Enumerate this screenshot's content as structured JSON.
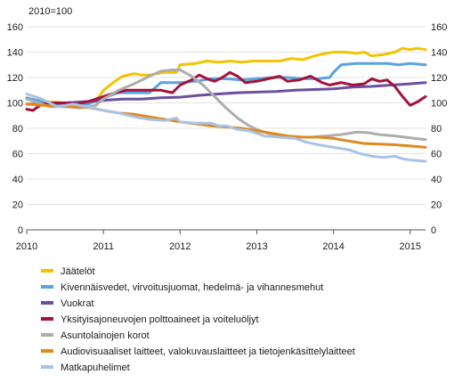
{
  "chart_data": {
    "type": "line",
    "title": "",
    "unit_label": "2010=100",
    "x_ticks": [
      "2010",
      "2011",
      "2012",
      "2013",
      "2014",
      "2015"
    ],
    "xlim": [
      2010.0,
      2015.2
    ],
    "ylim": [
      0,
      160
    ],
    "y_ticks": [
      "0",
      "20",
      "40",
      "60",
      "80",
      "100",
      "120",
      "140",
      "160"
    ],
    "grid": "horizontal",
    "legend_position": "bottom",
    "series": [
      {
        "name": "Jäätelöt",
        "color": "#f3c300",
        "points": [
          [
            2010.0,
            103
          ],
          [
            2010.25,
            101
          ],
          [
            2010.5,
            100
          ],
          [
            2010.75,
            99
          ],
          [
            2010.9,
            101
          ],
          [
            2011.0,
            110
          ],
          [
            2011.15,
            117
          ],
          [
            2011.25,
            121
          ],
          [
            2011.4,
            123
          ],
          [
            2011.5,
            122
          ],
          [
            2011.6,
            122
          ],
          [
            2011.8,
            124
          ],
          [
            2011.95,
            124
          ],
          [
            2012.0,
            130
          ],
          [
            2012.2,
            131
          ],
          [
            2012.35,
            133
          ],
          [
            2012.5,
            132
          ],
          [
            2012.65,
            133
          ],
          [
            2012.8,
            132
          ],
          [
            2012.95,
            133
          ],
          [
            2013.1,
            133
          ],
          [
            2013.3,
            133
          ],
          [
            2013.45,
            135
          ],
          [
            2013.6,
            134
          ],
          [
            2013.75,
            137
          ],
          [
            2013.9,
            139
          ],
          [
            2014.0,
            140
          ],
          [
            2014.15,
            140
          ],
          [
            2014.3,
            139
          ],
          [
            2014.4,
            140
          ],
          [
            2014.5,
            137
          ],
          [
            2014.65,
            138
          ],
          [
            2014.8,
            140
          ],
          [
            2014.9,
            143
          ],
          [
            2015.0,
            142
          ],
          [
            2015.1,
            143
          ],
          [
            2015.2,
            142
          ]
        ]
      },
      {
        "name": "Kivennäisvedet, virvoitusjuomat, hedelmä- ja vihannesmehut",
        "color": "#5ba3dc",
        "points": [
          [
            2010.0,
            104
          ],
          [
            2010.2,
            101
          ],
          [
            2010.4,
            99
          ],
          [
            2010.6,
            98
          ],
          [
            2010.8,
            99
          ],
          [
            2011.0,
            104
          ],
          [
            2011.2,
            108
          ],
          [
            2011.4,
            108
          ],
          [
            2011.6,
            108
          ],
          [
            2011.75,
            116
          ],
          [
            2012.0,
            116
          ],
          [
            2012.2,
            117
          ],
          [
            2012.4,
            119
          ],
          [
            2012.6,
            119
          ],
          [
            2012.8,
            118
          ],
          [
            2013.0,
            119
          ],
          [
            2013.2,
            120
          ],
          [
            2013.4,
            120
          ],
          [
            2013.6,
            119
          ],
          [
            2013.8,
            119
          ],
          [
            2013.95,
            120
          ],
          [
            2014.0,
            124
          ],
          [
            2014.1,
            130
          ],
          [
            2014.3,
            131
          ],
          [
            2014.5,
            131
          ],
          [
            2014.7,
            131
          ],
          [
            2014.85,
            130
          ],
          [
            2015.0,
            131
          ],
          [
            2015.2,
            130
          ]
        ]
      },
      {
        "name": "Vuokrat",
        "color": "#6b4fa0",
        "points": [
          [
            2010.0,
            99
          ],
          [
            2010.25,
            99
          ],
          [
            2010.5,
            100
          ],
          [
            2010.75,
            101
          ],
          [
            2011.0,
            102
          ],
          [
            2011.25,
            103
          ],
          [
            2011.5,
            103
          ],
          [
            2011.75,
            104
          ],
          [
            2012.0,
            104.5
          ],
          [
            2012.25,
            106
          ],
          [
            2012.5,
            107
          ],
          [
            2012.75,
            108
          ],
          [
            2013.0,
            108.5
          ],
          [
            2013.25,
            109
          ],
          [
            2013.5,
            110
          ],
          [
            2013.75,
            110.5
          ],
          [
            2014.0,
            111
          ],
          [
            2014.25,
            112.5
          ],
          [
            2014.5,
            113
          ],
          [
            2014.75,
            114
          ],
          [
            2015.0,
            115
          ],
          [
            2015.2,
            116
          ]
        ]
      },
      {
        "name": "Yksityisajoneuvojen polttoaineet ja voiteluöljyt",
        "color": "#a5113a",
        "points": [
          [
            2010.0,
            95
          ],
          [
            2010.08,
            94
          ],
          [
            2010.2,
            99
          ],
          [
            2010.35,
            100
          ],
          [
            2010.5,
            100
          ],
          [
            2010.65,
            99
          ],
          [
            2010.8,
            101
          ],
          [
            2011.0,
            105
          ],
          [
            2011.15,
            108
          ],
          [
            2011.3,
            110
          ],
          [
            2011.45,
            110
          ],
          [
            2011.6,
            110
          ],
          [
            2011.75,
            110
          ],
          [
            2011.9,
            108
          ],
          [
            2012.0,
            114
          ],
          [
            2012.15,
            118
          ],
          [
            2012.25,
            122
          ],
          [
            2012.35,
            119
          ],
          [
            2012.45,
            117
          ],
          [
            2012.55,
            120
          ],
          [
            2012.65,
            124
          ],
          [
            2012.75,
            121
          ],
          [
            2012.85,
            116
          ],
          [
            2013.0,
            117
          ],
          [
            2013.15,
            119
          ],
          [
            2013.3,
            121
          ],
          [
            2013.4,
            117
          ],
          [
            2013.55,
            118
          ],
          [
            2013.7,
            121
          ],
          [
            2013.85,
            116
          ],
          [
            2013.95,
            114
          ],
          [
            2014.1,
            116
          ],
          [
            2014.25,
            114
          ],
          [
            2014.4,
            115
          ],
          [
            2014.5,
            119
          ],
          [
            2014.6,
            117
          ],
          [
            2014.7,
            118
          ],
          [
            2014.8,
            113
          ],
          [
            2014.9,
            105
          ],
          [
            2015.0,
            98
          ],
          [
            2015.1,
            101
          ],
          [
            2015.2,
            105
          ]
        ]
      },
      {
        "name": "Asuntolainojen korot",
        "color": "#adadad",
        "points": [
          [
            2010.0,
            103
          ],
          [
            2010.15,
            100
          ],
          [
            2010.3,
            97
          ],
          [
            2010.5,
            97
          ],
          [
            2010.7,
            96
          ],
          [
            2010.9,
            98
          ],
          [
            2011.0,
            103
          ],
          [
            2011.2,
            110
          ],
          [
            2011.4,
            115
          ],
          [
            2011.6,
            121
          ],
          [
            2011.75,
            125
          ],
          [
            2011.9,
            126
          ],
          [
            2012.0,
            126
          ],
          [
            2012.15,
            121
          ],
          [
            2012.3,
            114
          ],
          [
            2012.45,
            105
          ],
          [
            2012.6,
            96
          ],
          [
            2012.75,
            88
          ],
          [
            2012.9,
            82
          ],
          [
            2013.0,
            79
          ],
          [
            2013.15,
            76
          ],
          [
            2013.3,
            74
          ],
          [
            2013.5,
            73
          ],
          [
            2013.7,
            73
          ],
          [
            2013.9,
            74
          ],
          [
            2014.1,
            75
          ],
          [
            2014.3,
            77
          ],
          [
            2014.45,
            76.5
          ],
          [
            2014.6,
            75
          ],
          [
            2014.8,
            74
          ],
          [
            2015.0,
            72.5
          ],
          [
            2015.2,
            71
          ]
        ]
      },
      {
        "name": "Audiovisuaaliset laitteet, valokuvauslaitteet ja tietojenkäsittelylaitteet",
        "color": "#e08a1e",
        "points": [
          [
            2010.0,
            99
          ],
          [
            2010.2,
            98
          ],
          [
            2010.4,
            97.5
          ],
          [
            2010.6,
            97
          ],
          [
            2010.8,
            96.5
          ],
          [
            2011.0,
            94
          ],
          [
            2011.2,
            92
          ],
          [
            2011.4,
            91
          ],
          [
            2011.6,
            89
          ],
          [
            2011.8,
            87
          ],
          [
            2012.0,
            85
          ],
          [
            2012.2,
            83.5
          ],
          [
            2012.4,
            82
          ],
          [
            2012.6,
            81
          ],
          [
            2012.8,
            80
          ],
          [
            2013.0,
            78
          ],
          [
            2013.2,
            76
          ],
          [
            2013.4,
            74
          ],
          [
            2013.6,
            73
          ],
          [
            2013.8,
            73
          ],
          [
            2014.0,
            72
          ],
          [
            2014.2,
            70
          ],
          [
            2014.4,
            68
          ],
          [
            2014.6,
            67.5
          ],
          [
            2014.8,
            67
          ],
          [
            2015.0,
            66
          ],
          [
            2015.2,
            65
          ]
        ]
      },
      {
        "name": "Matkapuhelimet",
        "color": "#a9c3e6",
        "points": [
          [
            2010.0,
            107
          ],
          [
            2010.2,
            103
          ],
          [
            2010.4,
            97
          ],
          [
            2010.6,
            99
          ],
          [
            2010.8,
            97
          ],
          [
            2011.0,
            94
          ],
          [
            2011.2,
            92
          ],
          [
            2011.4,
            89
          ],
          [
            2011.6,
            87
          ],
          [
            2011.8,
            86
          ],
          [
            2011.95,
            88
          ],
          [
            2012.0,
            85
          ],
          [
            2012.2,
            84
          ],
          [
            2012.4,
            84
          ],
          [
            2012.5,
            82
          ],
          [
            2012.6,
            82
          ],
          [
            2012.75,
            79
          ],
          [
            2012.9,
            78
          ],
          [
            2013.1,
            74
          ],
          [
            2013.3,
            73
          ],
          [
            2013.5,
            72
          ],
          [
            2013.65,
            69
          ],
          [
            2013.8,
            67
          ],
          [
            2014.0,
            65
          ],
          [
            2014.2,
            63
          ],
          [
            2014.35,
            60
          ],
          [
            2014.5,
            58
          ],
          [
            2014.65,
            57
          ],
          [
            2014.8,
            58
          ],
          [
            2014.9,
            56
          ],
          [
            2015.0,
            55
          ],
          [
            2015.2,
            54
          ]
        ]
      }
    ]
  }
}
